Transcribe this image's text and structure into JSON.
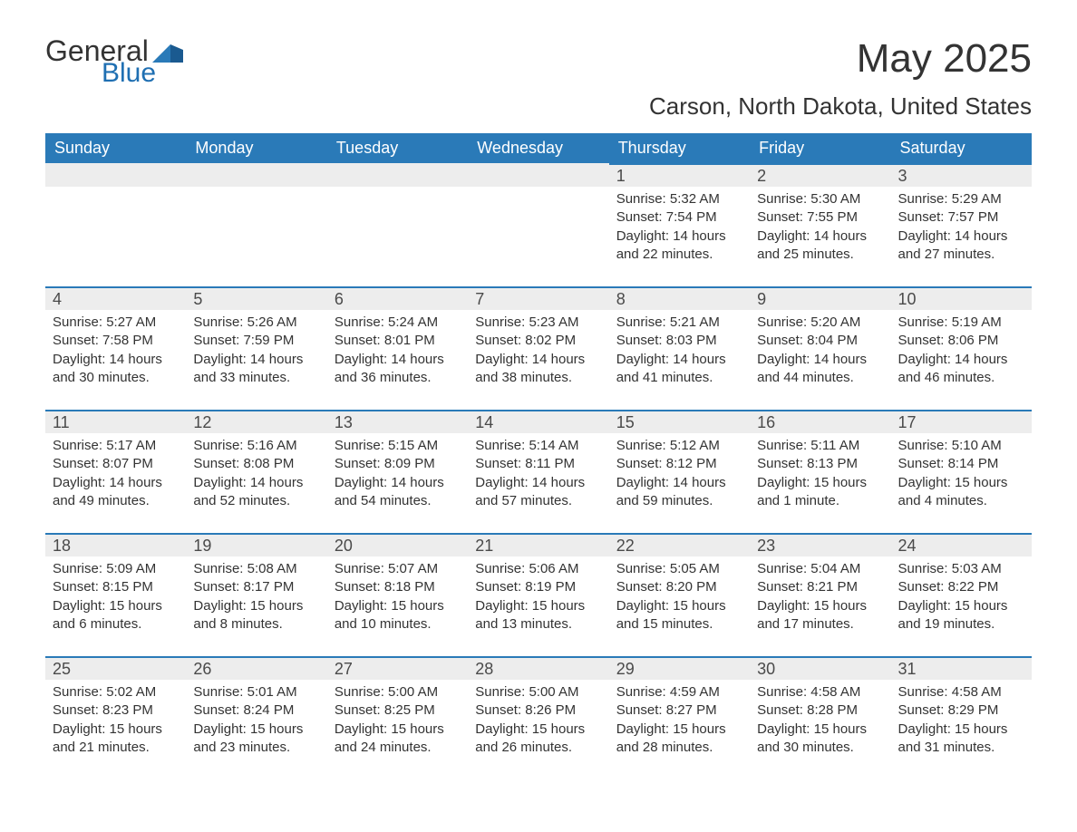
{
  "logo": {
    "word1": "General",
    "word2": "Blue",
    "accent_color": "#1f6fb2"
  },
  "title": {
    "month_year": "May 2025"
  },
  "location": "Carson, North Dakota, United States",
  "colors": {
    "header_bg": "#2a7ab8",
    "header_text": "#ffffff",
    "daynum_bg": "#ededed",
    "row_divider": "#2a7ab8",
    "body_text": "#333333",
    "page_bg": "#ffffff"
  },
  "days_of_week": [
    "Sunday",
    "Monday",
    "Tuesday",
    "Wednesday",
    "Thursday",
    "Friday",
    "Saturday"
  ],
  "weeks": [
    [
      {
        "n": "",
        "sunrise": "",
        "sunset": "",
        "daylight": ""
      },
      {
        "n": "",
        "sunrise": "",
        "sunset": "",
        "daylight": ""
      },
      {
        "n": "",
        "sunrise": "",
        "sunset": "",
        "daylight": ""
      },
      {
        "n": "",
        "sunrise": "",
        "sunset": "",
        "daylight": ""
      },
      {
        "n": "1",
        "sunrise": "Sunrise: 5:32 AM",
        "sunset": "Sunset: 7:54 PM",
        "daylight": "Daylight: 14 hours and 22 minutes."
      },
      {
        "n": "2",
        "sunrise": "Sunrise: 5:30 AM",
        "sunset": "Sunset: 7:55 PM",
        "daylight": "Daylight: 14 hours and 25 minutes."
      },
      {
        "n": "3",
        "sunrise": "Sunrise: 5:29 AM",
        "sunset": "Sunset: 7:57 PM",
        "daylight": "Daylight: 14 hours and 27 minutes."
      }
    ],
    [
      {
        "n": "4",
        "sunrise": "Sunrise: 5:27 AM",
        "sunset": "Sunset: 7:58 PM",
        "daylight": "Daylight: 14 hours and 30 minutes."
      },
      {
        "n": "5",
        "sunrise": "Sunrise: 5:26 AM",
        "sunset": "Sunset: 7:59 PM",
        "daylight": "Daylight: 14 hours and 33 minutes."
      },
      {
        "n": "6",
        "sunrise": "Sunrise: 5:24 AM",
        "sunset": "Sunset: 8:01 PM",
        "daylight": "Daylight: 14 hours and 36 minutes."
      },
      {
        "n": "7",
        "sunrise": "Sunrise: 5:23 AM",
        "sunset": "Sunset: 8:02 PM",
        "daylight": "Daylight: 14 hours and 38 minutes."
      },
      {
        "n": "8",
        "sunrise": "Sunrise: 5:21 AM",
        "sunset": "Sunset: 8:03 PM",
        "daylight": "Daylight: 14 hours and 41 minutes."
      },
      {
        "n": "9",
        "sunrise": "Sunrise: 5:20 AM",
        "sunset": "Sunset: 8:04 PM",
        "daylight": "Daylight: 14 hours and 44 minutes."
      },
      {
        "n": "10",
        "sunrise": "Sunrise: 5:19 AM",
        "sunset": "Sunset: 8:06 PM",
        "daylight": "Daylight: 14 hours and 46 minutes."
      }
    ],
    [
      {
        "n": "11",
        "sunrise": "Sunrise: 5:17 AM",
        "sunset": "Sunset: 8:07 PM",
        "daylight": "Daylight: 14 hours and 49 minutes."
      },
      {
        "n": "12",
        "sunrise": "Sunrise: 5:16 AM",
        "sunset": "Sunset: 8:08 PM",
        "daylight": "Daylight: 14 hours and 52 minutes."
      },
      {
        "n": "13",
        "sunrise": "Sunrise: 5:15 AM",
        "sunset": "Sunset: 8:09 PM",
        "daylight": "Daylight: 14 hours and 54 minutes."
      },
      {
        "n": "14",
        "sunrise": "Sunrise: 5:14 AM",
        "sunset": "Sunset: 8:11 PM",
        "daylight": "Daylight: 14 hours and 57 minutes."
      },
      {
        "n": "15",
        "sunrise": "Sunrise: 5:12 AM",
        "sunset": "Sunset: 8:12 PM",
        "daylight": "Daylight: 14 hours and 59 minutes."
      },
      {
        "n": "16",
        "sunrise": "Sunrise: 5:11 AM",
        "sunset": "Sunset: 8:13 PM",
        "daylight": "Daylight: 15 hours and 1 minute."
      },
      {
        "n": "17",
        "sunrise": "Sunrise: 5:10 AM",
        "sunset": "Sunset: 8:14 PM",
        "daylight": "Daylight: 15 hours and 4 minutes."
      }
    ],
    [
      {
        "n": "18",
        "sunrise": "Sunrise: 5:09 AM",
        "sunset": "Sunset: 8:15 PM",
        "daylight": "Daylight: 15 hours and 6 minutes."
      },
      {
        "n": "19",
        "sunrise": "Sunrise: 5:08 AM",
        "sunset": "Sunset: 8:17 PM",
        "daylight": "Daylight: 15 hours and 8 minutes."
      },
      {
        "n": "20",
        "sunrise": "Sunrise: 5:07 AM",
        "sunset": "Sunset: 8:18 PM",
        "daylight": "Daylight: 15 hours and 10 minutes."
      },
      {
        "n": "21",
        "sunrise": "Sunrise: 5:06 AM",
        "sunset": "Sunset: 8:19 PM",
        "daylight": "Daylight: 15 hours and 13 minutes."
      },
      {
        "n": "22",
        "sunrise": "Sunrise: 5:05 AM",
        "sunset": "Sunset: 8:20 PM",
        "daylight": "Daylight: 15 hours and 15 minutes."
      },
      {
        "n": "23",
        "sunrise": "Sunrise: 5:04 AM",
        "sunset": "Sunset: 8:21 PM",
        "daylight": "Daylight: 15 hours and 17 minutes."
      },
      {
        "n": "24",
        "sunrise": "Sunrise: 5:03 AM",
        "sunset": "Sunset: 8:22 PM",
        "daylight": "Daylight: 15 hours and 19 minutes."
      }
    ],
    [
      {
        "n": "25",
        "sunrise": "Sunrise: 5:02 AM",
        "sunset": "Sunset: 8:23 PM",
        "daylight": "Daylight: 15 hours and 21 minutes."
      },
      {
        "n": "26",
        "sunrise": "Sunrise: 5:01 AM",
        "sunset": "Sunset: 8:24 PM",
        "daylight": "Daylight: 15 hours and 23 minutes."
      },
      {
        "n": "27",
        "sunrise": "Sunrise: 5:00 AM",
        "sunset": "Sunset: 8:25 PM",
        "daylight": "Daylight: 15 hours and 24 minutes."
      },
      {
        "n": "28",
        "sunrise": "Sunrise: 5:00 AM",
        "sunset": "Sunset: 8:26 PM",
        "daylight": "Daylight: 15 hours and 26 minutes."
      },
      {
        "n": "29",
        "sunrise": "Sunrise: 4:59 AM",
        "sunset": "Sunset: 8:27 PM",
        "daylight": "Daylight: 15 hours and 28 minutes."
      },
      {
        "n": "30",
        "sunrise": "Sunrise: 4:58 AM",
        "sunset": "Sunset: 8:28 PM",
        "daylight": "Daylight: 15 hours and 30 minutes."
      },
      {
        "n": "31",
        "sunrise": "Sunrise: 4:58 AM",
        "sunset": "Sunset: 8:29 PM",
        "daylight": "Daylight: 15 hours and 31 minutes."
      }
    ]
  ]
}
